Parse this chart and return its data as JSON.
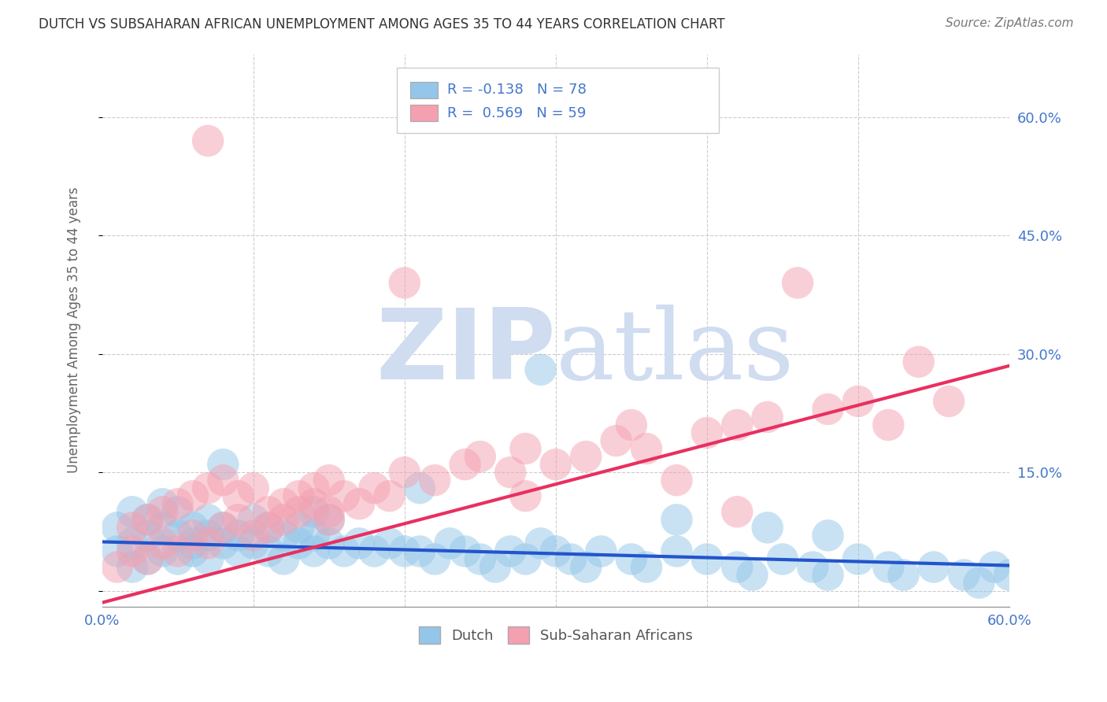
{
  "title": "DUTCH VS SUBSAHARAN AFRICAN UNEMPLOYMENT AMONG AGES 35 TO 44 YEARS CORRELATION CHART",
  "source": "Source: ZipAtlas.com",
  "ylabel": "Unemployment Among Ages 35 to 44 years",
  "xlim": [
    0.0,
    0.6
  ],
  "ylim": [
    -0.02,
    0.68
  ],
  "ytick_positions": [
    0.0,
    0.15,
    0.3,
    0.45,
    0.6
  ],
  "ytick_labels_right": [
    "",
    "15.0%",
    "30.0%",
    "45.0%",
    "60.0%"
  ],
  "dutch_R": -0.138,
  "dutch_N": 78,
  "subsaharan_R": 0.569,
  "subsaharan_N": 59,
  "dutch_color": "#93C6E8",
  "subsaharan_color": "#F4A0B0",
  "dutch_line_color": "#2255CC",
  "subsaharan_line_color": "#E83060",
  "watermark_color": "#D0DCF0",
  "background_color": "#FFFFFF",
  "grid_color": "#CCCCCC",
  "title_color": "#333333",
  "label_color": "#4477CC",
  "dutch_trend_x": [
    0.0,
    0.6
  ],
  "dutch_trend_y": [
    0.062,
    0.032
  ],
  "subsaharan_trend_x": [
    0.0,
    0.6
  ],
  "subsaharan_trend_y": [
    -0.015,
    0.285
  ],
  "dutch_x": [
    0.01,
    0.01,
    0.02,
    0.02,
    0.02,
    0.03,
    0.03,
    0.03,
    0.04,
    0.04,
    0.04,
    0.05,
    0.05,
    0.05,
    0.06,
    0.06,
    0.06,
    0.07,
    0.07,
    0.07,
    0.08,
    0.08,
    0.09,
    0.09,
    0.1,
    0.1,
    0.11,
    0.11,
    0.12,
    0.12,
    0.13,
    0.13,
    0.14,
    0.14,
    0.15,
    0.15,
    0.16,
    0.17,
    0.18,
    0.19,
    0.2,
    0.21,
    0.22,
    0.23,
    0.24,
    0.25,
    0.26,
    0.27,
    0.28,
    0.29,
    0.3,
    0.31,
    0.32,
    0.33,
    0.35,
    0.36,
    0.38,
    0.4,
    0.42,
    0.43,
    0.45,
    0.47,
    0.48,
    0.5,
    0.52,
    0.53,
    0.55,
    0.57,
    0.58,
    0.59,
    0.6,
    0.48,
    0.44,
    0.38,
    0.29,
    0.21,
    0.14,
    0.08
  ],
  "dutch_y": [
    0.05,
    0.08,
    0.03,
    0.06,
    0.1,
    0.04,
    0.07,
    0.09,
    0.05,
    0.08,
    0.11,
    0.04,
    0.07,
    0.1,
    0.05,
    0.08,
    0.06,
    0.04,
    0.09,
    0.07,
    0.06,
    0.08,
    0.05,
    0.07,
    0.06,
    0.09,
    0.05,
    0.08,
    0.04,
    0.07,
    0.06,
    0.08,
    0.05,
    0.07,
    0.06,
    0.09,
    0.05,
    0.06,
    0.05,
    0.06,
    0.05,
    0.05,
    0.04,
    0.06,
    0.05,
    0.04,
    0.03,
    0.05,
    0.04,
    0.06,
    0.05,
    0.04,
    0.03,
    0.05,
    0.04,
    0.03,
    0.05,
    0.04,
    0.03,
    0.02,
    0.04,
    0.03,
    0.02,
    0.04,
    0.03,
    0.02,
    0.03,
    0.02,
    0.01,
    0.03,
    0.02,
    0.07,
    0.08,
    0.09,
    0.28,
    0.13,
    0.1,
    0.16
  ],
  "sub_x": [
    0.01,
    0.02,
    0.02,
    0.03,
    0.03,
    0.04,
    0.04,
    0.05,
    0.05,
    0.06,
    0.06,
    0.07,
    0.07,
    0.08,
    0.08,
    0.09,
    0.09,
    0.1,
    0.1,
    0.11,
    0.11,
    0.12,
    0.12,
    0.13,
    0.13,
    0.14,
    0.14,
    0.15,
    0.15,
    0.16,
    0.17,
    0.18,
    0.19,
    0.2,
    0.22,
    0.24,
    0.25,
    0.27,
    0.28,
    0.3,
    0.32,
    0.34,
    0.36,
    0.38,
    0.4,
    0.42,
    0.44,
    0.46,
    0.48,
    0.5,
    0.52,
    0.54,
    0.56,
    0.35,
    0.2,
    0.28,
    0.15,
    0.42,
    0.07
  ],
  "sub_y": [
    0.03,
    0.05,
    0.08,
    0.04,
    0.09,
    0.06,
    0.1,
    0.05,
    0.11,
    0.07,
    0.12,
    0.06,
    0.13,
    0.08,
    0.14,
    0.09,
    0.12,
    0.07,
    0.13,
    0.1,
    0.08,
    0.11,
    0.09,
    0.12,
    0.1,
    0.13,
    0.11,
    0.14,
    0.1,
    0.12,
    0.11,
    0.13,
    0.12,
    0.15,
    0.14,
    0.16,
    0.17,
    0.15,
    0.18,
    0.16,
    0.17,
    0.19,
    0.18,
    0.14,
    0.2,
    0.21,
    0.22,
    0.39,
    0.23,
    0.24,
    0.21,
    0.29,
    0.24,
    0.21,
    0.39,
    0.12,
    0.09,
    0.1,
    0.57
  ]
}
